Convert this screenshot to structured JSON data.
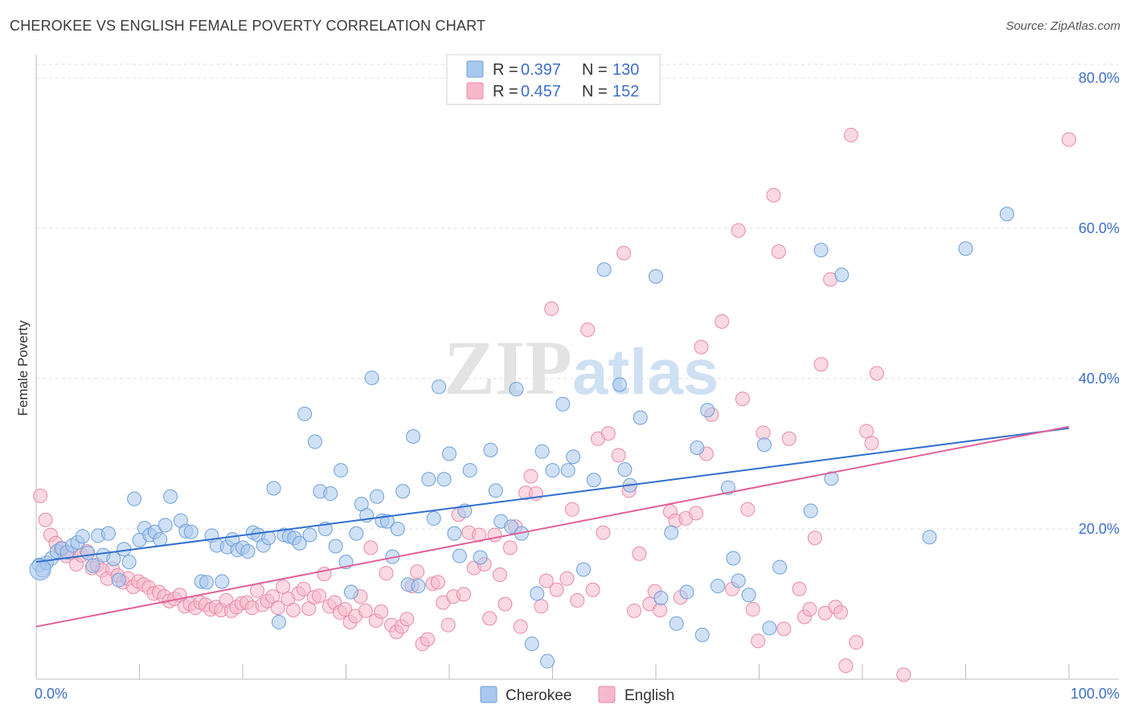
{
  "title": "CHEROKEE VS ENGLISH FEMALE POVERTY CORRELATION CHART",
  "source": "Source: ZipAtlas.com",
  "watermark": {
    "zip": "ZIP",
    "atlas": "atlas"
  },
  "colors": {
    "cherokee_fill": "#a9c8ee",
    "cherokee_stroke": "#6f9fd8",
    "cherokee_line": "#2f6fd0",
    "english_fill": "#f6b9cc",
    "english_stroke": "#e88aa8",
    "english_line": "#e0609a",
    "grid": "#dcdcdc",
    "tick_text": "#3f6fc6"
  },
  "chart_data": {
    "type": "scatter",
    "title": "CHEROKEE VS ENGLISH FEMALE POVERTY CORRELATION CHART",
    "xlabel": "",
    "ylabel": "Female Poverty",
    "xlim": [
      0,
      100
    ],
    "ylim": [
      0,
      80
    ],
    "x_tick_labels": [
      "0.0%",
      "100.0%"
    ],
    "y_ticks": [
      20,
      40,
      60,
      80
    ],
    "y_tick_labels": [
      "20.0%",
      "40.0%",
      "60.0%",
      "80.0%"
    ],
    "grid": true,
    "legend_position": "top-center",
    "legend": [
      {
        "name": "Cherokee",
        "r_label": "R =",
        "r": "0.397",
        "n_label": "N =",
        "n": "130"
      },
      {
        "name": "English",
        "r_label": "R =",
        "r": "0.457",
        "n_label": "N =",
        "n": "152"
      }
    ],
    "series": [
      {
        "name": "Cherokee",
        "trend": {
          "x": [
            0,
            100
          ],
          "y": [
            15.6,
            33.4
          ]
        },
        "points": [
          [
            0.3,
            15.2
          ],
          [
            0.6,
            14.5
          ],
          [
            1.0,
            15.5
          ],
          [
            1.5,
            16.1
          ],
          [
            2.0,
            17.0
          ],
          [
            2.5,
            17.4
          ],
          [
            3.0,
            16.9
          ],
          [
            3.5,
            17.8
          ],
          [
            4.0,
            18.2
          ],
          [
            4.5,
            19.0
          ],
          [
            5.0,
            16.8
          ],
          [
            5.5,
            15.1
          ],
          [
            6.0,
            19.1
          ],
          [
            6.5,
            16.5
          ],
          [
            7.0,
            19.4
          ],
          [
            7.5,
            16.0
          ],
          [
            8.0,
            13.2
          ],
          [
            8.5,
            17.3
          ],
          [
            9.0,
            15.6
          ],
          [
            9.5,
            24.0
          ],
          [
            10.0,
            18.5
          ],
          [
            10.5,
            20.1
          ],
          [
            11.0,
            19.2
          ],
          [
            11.5,
            19.6
          ],
          [
            12.0,
            18.6
          ],
          [
            12.5,
            20.5
          ],
          [
            13.0,
            24.3
          ],
          [
            14.0,
            21.1
          ],
          [
            14.5,
            19.7
          ],
          [
            15.0,
            19.6
          ],
          [
            16.0,
            13.0
          ],
          [
            16.5,
            12.9
          ],
          [
            17.0,
            19.1
          ],
          [
            17.5,
            17.8
          ],
          [
            18.0,
            13.0
          ],
          [
            18.5,
            17.6
          ],
          [
            19.0,
            18.6
          ],
          [
            19.5,
            17.2
          ],
          [
            20.0,
            17.5
          ],
          [
            20.5,
            17.0
          ],
          [
            21.0,
            19.5
          ],
          [
            21.5,
            19.2
          ],
          [
            22.0,
            17.8
          ],
          [
            22.5,
            18.8
          ],
          [
            23.0,
            25.4
          ],
          [
            23.5,
            7.6
          ],
          [
            24.0,
            19.2
          ],
          [
            24.5,
            19.0
          ],
          [
            25.0,
            18.8
          ],
          [
            25.5,
            18.1
          ],
          [
            26.0,
            35.3
          ],
          [
            26.5,
            19.2
          ],
          [
            27.0,
            31.6
          ],
          [
            27.5,
            25.0
          ],
          [
            28.0,
            20.0
          ],
          [
            28.5,
            24.7
          ],
          [
            29.0,
            17.7
          ],
          [
            29.5,
            27.8
          ],
          [
            30.0,
            15.6
          ],
          [
            30.5,
            11.6
          ],
          [
            31.0,
            19.4
          ],
          [
            31.5,
            23.3
          ],
          [
            32.0,
            21.8
          ],
          [
            32.5,
            40.1
          ],
          [
            33.0,
            24.3
          ],
          [
            33.5,
            21.1
          ],
          [
            34.0,
            21.0
          ],
          [
            34.5,
            16.3
          ],
          [
            35.0,
            20.0
          ],
          [
            35.5,
            25.0
          ],
          [
            36.0,
            12.6
          ],
          [
            36.5,
            32.3
          ],
          [
            37.0,
            12.4
          ],
          [
            38.0,
            26.6
          ],
          [
            38.5,
            21.4
          ],
          [
            39.0,
            38.9
          ],
          [
            39.5,
            26.6
          ],
          [
            40.0,
            30.0
          ],
          [
            40.5,
            19.4
          ],
          [
            41.0,
            16.4
          ],
          [
            41.5,
            22.4
          ],
          [
            42.0,
            27.8
          ],
          [
            43.0,
            16.2
          ],
          [
            44.0,
            30.5
          ],
          [
            44.5,
            25.1
          ],
          [
            45.0,
            21.0
          ],
          [
            46.0,
            20.3
          ],
          [
            46.5,
            38.6
          ],
          [
            47.0,
            19.4
          ],
          [
            48.0,
            4.7
          ],
          [
            48.5,
            11.4
          ],
          [
            49.0,
            30.3
          ],
          [
            49.5,
            2.4
          ],
          [
            50.0,
            27.8
          ],
          [
            51.0,
            36.6
          ],
          [
            51.5,
            27.8
          ],
          [
            52.0,
            29.6
          ],
          [
            53.0,
            14.6
          ],
          [
            54.0,
            26.5
          ],
          [
            55.0,
            54.5
          ],
          [
            56.5,
            39.2
          ],
          [
            57.0,
            27.9
          ],
          [
            57.5,
            25.8
          ],
          [
            58.5,
            34.8
          ],
          [
            60.0,
            53.6
          ],
          [
            60.5,
            10.8
          ],
          [
            61.5,
            19.5
          ],
          [
            62.0,
            7.4
          ],
          [
            63.0,
            11.6
          ],
          [
            64.0,
            30.8
          ],
          [
            64.5,
            5.9
          ],
          [
            65.0,
            35.8
          ],
          [
            66.0,
            12.4
          ],
          [
            67.0,
            25.5
          ],
          [
            67.5,
            16.1
          ],
          [
            68.0,
            13.1
          ],
          [
            69.0,
            11.2
          ],
          [
            70.5,
            31.2
          ],
          [
            71.0,
            6.8
          ],
          [
            72.0,
            14.9
          ],
          [
            75.0,
            22.4
          ],
          [
            76.0,
            57.1
          ],
          [
            77.0,
            26.7
          ],
          [
            78.0,
            53.8
          ],
          [
            86.5,
            18.9
          ],
          [
            90.0,
            57.3
          ],
          [
            94.0,
            61.9
          ]
        ]
      },
      {
        "name": "English",
        "trend": {
          "x": [
            0,
            100
          ],
          "y": [
            7.0,
            33.6
          ]
        },
        "points": [
          [
            0.4,
            24.4
          ],
          [
            0.9,
            21.2
          ],
          [
            1.4,
            19.2
          ],
          [
            1.9,
            18.1
          ],
          [
            2.4,
            17.4
          ],
          [
            2.9,
            16.4
          ],
          [
            3.4,
            16.8
          ],
          [
            3.9,
            15.3
          ],
          [
            4.4,
            16.5
          ],
          [
            4.9,
            17.0
          ],
          [
            5.4,
            14.8
          ],
          [
            5.9,
            15.2
          ],
          [
            6.4,
            14.5
          ],
          [
            6.9,
            13.4
          ],
          [
            7.4,
            14.7
          ],
          [
            7.9,
            13.8
          ],
          [
            8.4,
            12.9
          ],
          [
            8.9,
            13.4
          ],
          [
            9.4,
            12.3
          ],
          [
            9.9,
            13.0
          ],
          [
            10.4,
            12.6
          ],
          [
            10.9,
            12.2
          ],
          [
            11.4,
            11.4
          ],
          [
            11.9,
            11.6
          ],
          [
            12.4,
            11.0
          ],
          [
            12.9,
            10.4
          ],
          [
            13.4,
            10.7
          ],
          [
            13.9,
            11.2
          ],
          [
            14.4,
            9.7
          ],
          [
            14.9,
            10.0
          ],
          [
            15.4,
            9.5
          ],
          [
            15.9,
            10.2
          ],
          [
            16.4,
            9.9
          ],
          [
            16.9,
            9.3
          ],
          [
            17.4,
            9.6
          ],
          [
            17.9,
            9.2
          ],
          [
            18.4,
            10.5
          ],
          [
            18.9,
            9.1
          ],
          [
            19.4,
            9.6
          ],
          [
            19.9,
            10.1
          ],
          [
            20.4,
            10.2
          ],
          [
            20.9,
            9.5
          ],
          [
            21.4,
            11.8
          ],
          [
            21.9,
            9.9
          ],
          [
            22.4,
            10.4
          ],
          [
            22.9,
            11.0
          ],
          [
            23.4,
            9.5
          ],
          [
            23.9,
            12.3
          ],
          [
            24.4,
            10.7
          ],
          [
            24.9,
            9.2
          ],
          [
            25.4,
            11.4
          ],
          [
            25.9,
            12.0
          ],
          [
            26.4,
            9.4
          ],
          [
            26.9,
            10.9
          ],
          [
            27.4,
            11.1
          ],
          [
            27.9,
            14.0
          ],
          [
            28.4,
            9.7
          ],
          [
            28.9,
            10.2
          ],
          [
            29.4,
            8.9
          ],
          [
            29.9,
            9.3
          ],
          [
            30.4,
            7.6
          ],
          [
            30.9,
            8.4
          ],
          [
            31.4,
            11.0
          ],
          [
            31.9,
            9.1
          ],
          [
            32.4,
            17.5
          ],
          [
            32.9,
            7.8
          ],
          [
            33.4,
            9.0
          ],
          [
            33.9,
            14.1
          ],
          [
            34.4,
            7.2
          ],
          [
            34.9,
            6.3
          ],
          [
            35.4,
            7.0
          ],
          [
            35.9,
            8.0
          ],
          [
            36.4,
            12.4
          ],
          [
            36.9,
            14.3
          ],
          [
            37.4,
            4.7
          ],
          [
            37.9,
            5.3
          ],
          [
            38.4,
            12.7
          ],
          [
            38.9,
            12.9
          ],
          [
            39.4,
            10.2
          ],
          [
            39.9,
            7.2
          ],
          [
            40.4,
            11.0
          ],
          [
            40.9,
            21.9
          ],
          [
            41.4,
            11.3
          ],
          [
            41.9,
            19.5
          ],
          [
            42.4,
            14.8
          ],
          [
            42.9,
            19.2
          ],
          [
            43.4,
            15.3
          ],
          [
            43.9,
            8.1
          ],
          [
            44.4,
            19.2
          ],
          [
            44.9,
            13.9
          ],
          [
            45.4,
            10.0
          ],
          [
            45.9,
            17.5
          ],
          [
            46.4,
            20.3
          ],
          [
            46.9,
            7.0
          ],
          [
            47.4,
            24.8
          ],
          [
            47.9,
            27.0
          ],
          [
            48.4,
            24.7
          ],
          [
            48.9,
            9.7
          ],
          [
            49.4,
            13.1
          ],
          [
            49.9,
            49.3
          ],
          [
            50.4,
            11.9
          ],
          [
            51.4,
            13.4
          ],
          [
            51.9,
            22.6
          ],
          [
            52.4,
            10.5
          ],
          [
            53.4,
            46.5
          ],
          [
            53.9,
            11.9
          ],
          [
            54.4,
            32.0
          ],
          [
            54.9,
            19.5
          ],
          [
            55.4,
            32.7
          ],
          [
            56.4,
            29.8
          ],
          [
            56.9,
            56.7
          ],
          [
            57.4,
            25.1
          ],
          [
            57.9,
            9.1
          ],
          [
            58.4,
            16.7
          ],
          [
            59.4,
            10.0
          ],
          [
            59.9,
            11.7
          ],
          [
            60.4,
            9.2
          ],
          [
            61.4,
            22.3
          ],
          [
            61.9,
            21.1
          ],
          [
            62.4,
            10.9
          ],
          [
            62.9,
            21.4
          ],
          [
            63.9,
            22.1
          ],
          [
            64.4,
            44.2
          ],
          [
            64.9,
            30.0
          ],
          [
            65.4,
            35.2
          ],
          [
            66.4,
            47.6
          ],
          [
            67.4,
            12.0
          ],
          [
            68.0,
            59.7
          ],
          [
            68.4,
            37.3
          ],
          [
            68.9,
            22.6
          ],
          [
            69.4,
            9.3
          ],
          [
            69.9,
            5.1
          ],
          [
            70.4,
            32.8
          ],
          [
            71.4,
            64.4
          ],
          [
            71.9,
            56.9
          ],
          [
            72.4,
            6.7
          ],
          [
            72.9,
            32.0
          ],
          [
            73.9,
            12.0
          ],
          [
            74.4,
            8.3
          ],
          [
            74.9,
            9.3
          ],
          [
            75.4,
            18.8
          ],
          [
            76.0,
            41.9
          ],
          [
            76.4,
            8.8
          ],
          [
            76.9,
            53.2
          ],
          [
            77.4,
            9.6
          ],
          [
            77.9,
            8.9
          ],
          [
            78.4,
            1.8
          ],
          [
            78.9,
            72.4
          ],
          [
            79.4,
            4.9
          ],
          [
            80.4,
            33.0
          ],
          [
            80.9,
            31.4
          ],
          [
            81.4,
            40.7
          ],
          [
            84.0,
            0.6
          ],
          [
            100.0,
            71.8
          ]
        ]
      }
    ]
  },
  "bottom_legend": [
    {
      "name": "Cherokee"
    },
    {
      "name": "English"
    }
  ]
}
